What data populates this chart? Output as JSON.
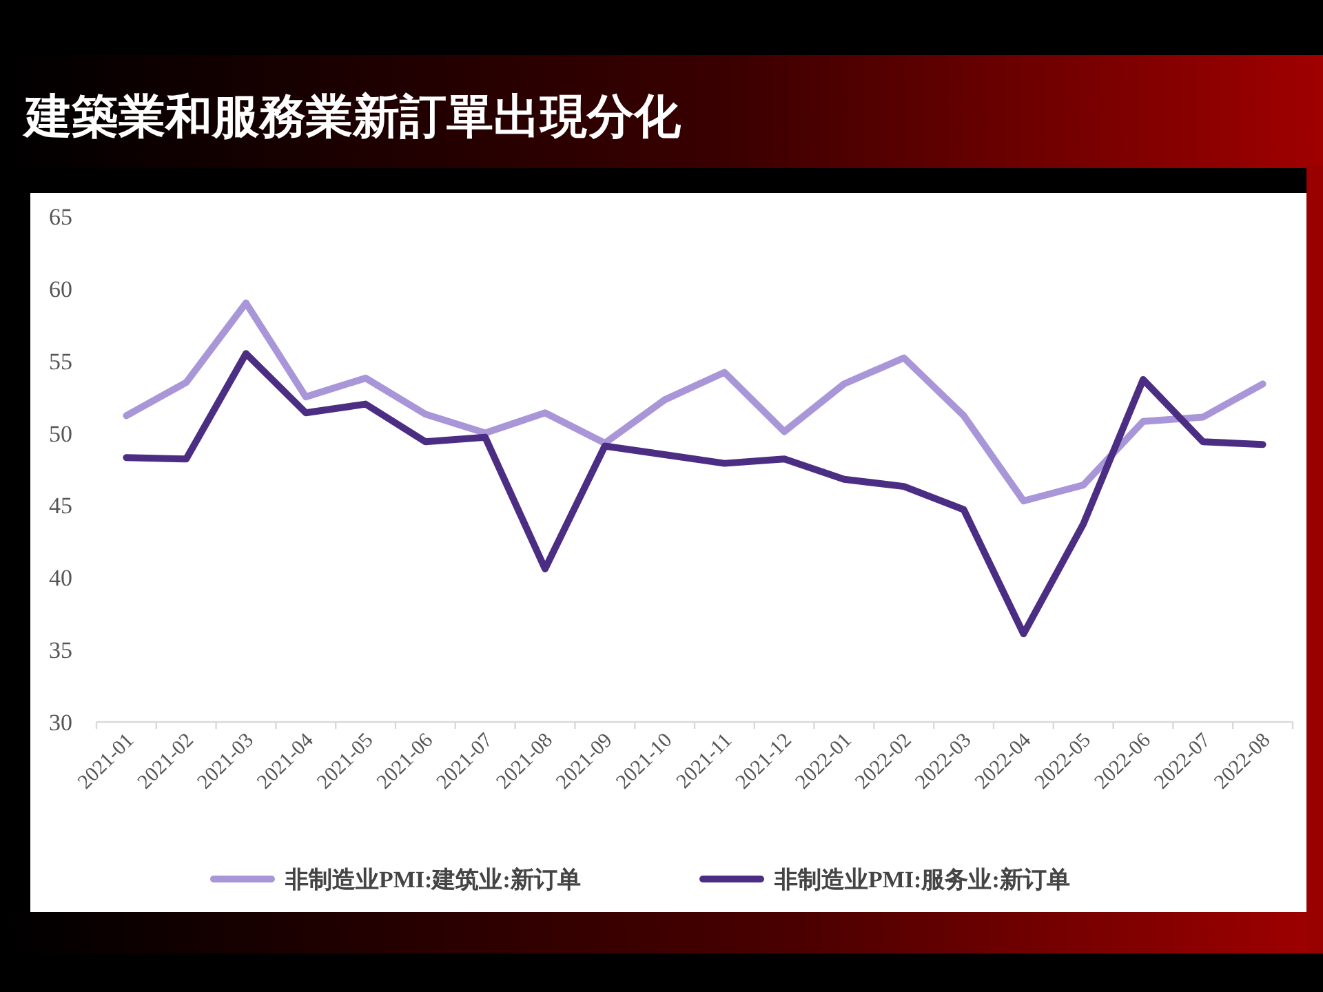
{
  "chart_data": {
    "type": "line",
    "title": "建築業和服務業新訂單出現分化",
    "categories": [
      "2021-01",
      "2021-02",
      "2021-03",
      "2021-04",
      "2021-05",
      "2021-06",
      "2021-07",
      "2021-08",
      "2021-09",
      "2021-10",
      "2021-11",
      "2021-12",
      "2022-01",
      "2022-02",
      "2022-03",
      "2022-04",
      "2022-05",
      "2022-06",
      "2022-07",
      "2022-08"
    ],
    "series": [
      {
        "name": "非制造业PMI:建筑业:新订单",
        "color": "#a996d8",
        "values": [
          51.2,
          53.5,
          59.0,
          52.5,
          53.8,
          51.3,
          50.0,
          51.4,
          49.3,
          52.3,
          54.2,
          50.1,
          53.4,
          55.2,
          51.2,
          45.3,
          46.4,
          50.8,
          51.1,
          53.4
        ]
      },
      {
        "name": "非制造业PMI:服务业:新订单",
        "color": "#4b2e83",
        "values": [
          48.3,
          48.2,
          55.5,
          51.4,
          52.0,
          49.4,
          49.7,
          40.6,
          49.1,
          48.5,
          47.9,
          48.2,
          46.8,
          46.3,
          44.7,
          36.1,
          43.7,
          53.7,
          49.4,
          49.2
        ]
      }
    ],
    "ylim": [
      30,
      65
    ],
    "yticks": [
      30,
      35,
      40,
      45,
      50,
      55,
      60,
      65
    ],
    "legend": "bottom"
  }
}
